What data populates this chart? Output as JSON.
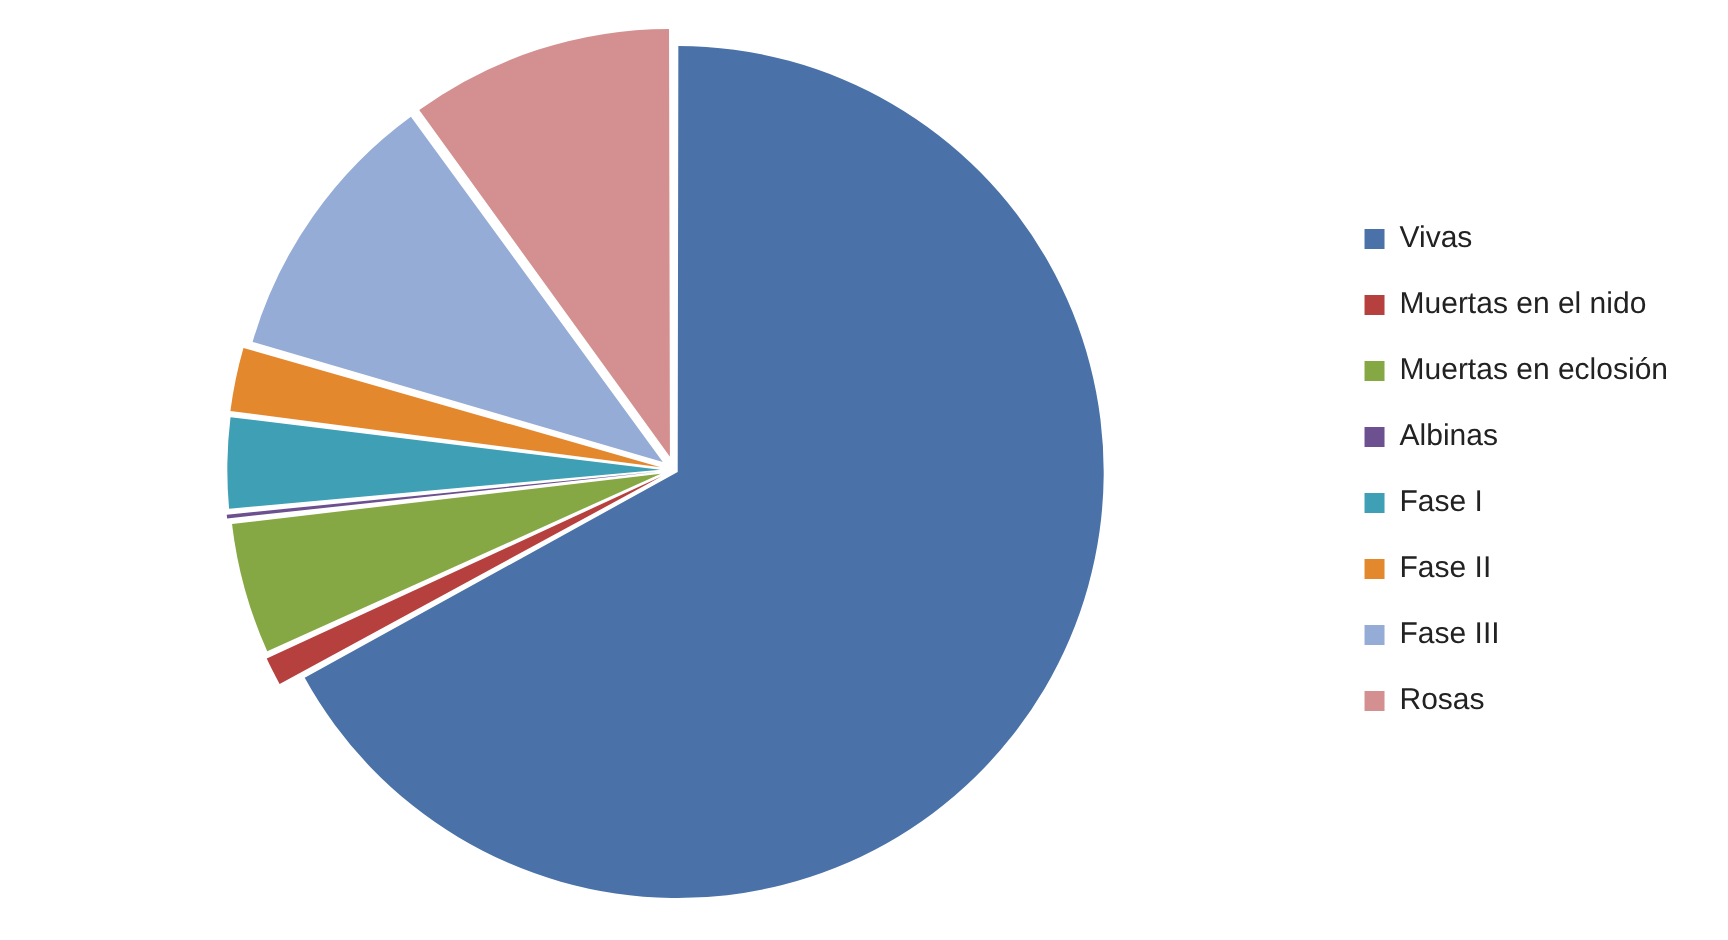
{
  "chart_data": {
    "type": "pie",
    "categories": [
      "Vivas",
      "Muertas en el nido",
      "Muertas en eclosión",
      "Albinas",
      "Fase I",
      "Fase II",
      "Fase III",
      "Rosas"
    ],
    "values": [
      67,
      1.2,
      5,
      0.3,
      3.5,
      2.5,
      10.5,
      10
    ],
    "colors": [
      "#4a72a8",
      "#b5403e",
      "#86a844",
      "#6c5090",
      "#3e9fb5",
      "#e4882e",
      "#95acd6",
      "#d49090"
    ],
    "legend": "right"
  }
}
